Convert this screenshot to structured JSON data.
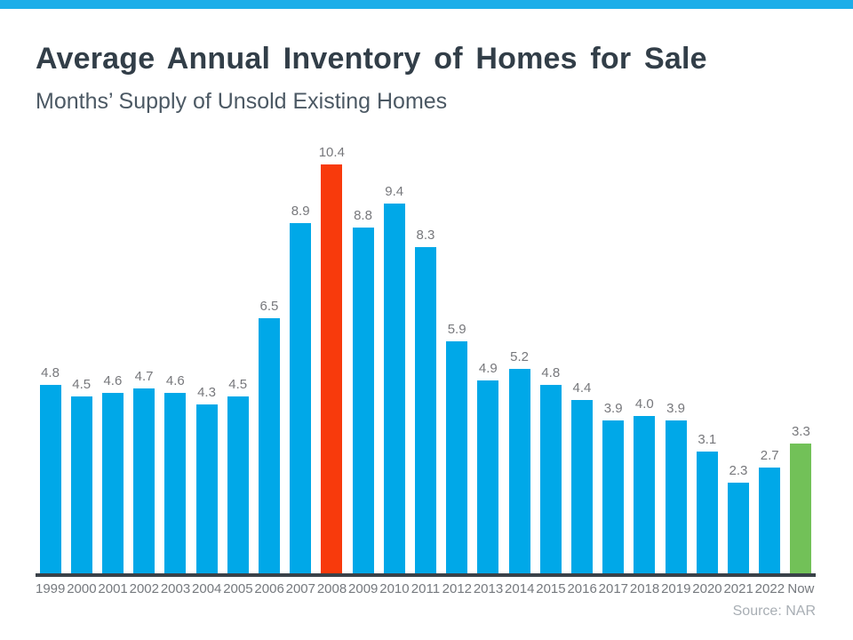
{
  "page": {
    "title": "Average Annual Inventory of Homes for Sale",
    "subtitle": "Months’ Supply of Unsold Existing Homes",
    "source": "Source: NAR"
  },
  "colors": {
    "accent_bar": "#1caee9",
    "bar_default": "#00a8e8",
    "bar_highlight_2008": "#f83a0c",
    "bar_highlight_now": "#72c158",
    "title_text": "#323e48",
    "subtitle_text": "#4c5964",
    "value_label_text": "#77787c",
    "axis_line": "#3a4249",
    "axis_label_text": "#75797e",
    "source_text": "#a8aeb4"
  },
  "chart_data": {
    "type": "bar",
    "title": "Average Annual Inventory of Homes for Sale",
    "subtitle": "Months’ Supply of Unsold Existing Homes",
    "categories": [
      "1999",
      "2000",
      "2001",
      "2002",
      "2003",
      "2004",
      "2005",
      "2006",
      "2007",
      "2008",
      "2009",
      "2010",
      "2011",
      "2012",
      "2013",
      "2014",
      "2015",
      "2016",
      "2017",
      "2018",
      "2019",
      "2020",
      "2021",
      "2022",
      "Now"
    ],
    "values": [
      4.8,
      4.5,
      4.6,
      4.7,
      4.6,
      4.3,
      4.5,
      6.5,
      8.9,
      10.4,
      8.8,
      9.4,
      8.3,
      5.9,
      4.9,
      5.2,
      4.8,
      4.4,
      3.9,
      4.0,
      3.9,
      3.1,
      2.3,
      2.7,
      3.3
    ],
    "value_labels": [
      "4.8",
      "4.5",
      "4.6",
      "4.7",
      "4.6",
      "4.3",
      "4.5",
      "6.5",
      "8.9",
      "10.4",
      "8.8",
      "9.4",
      "8.3",
      "5.9",
      "4.9",
      "5.2",
      "4.8",
      "4.4",
      "3.9",
      "4.0",
      "3.9",
      "3.1",
      "2.3",
      "2.7",
      "3.3"
    ],
    "bar_color_default": "#00a8e8",
    "highlighted_bars": [
      {
        "category": "2008",
        "color": "#f83a0c"
      },
      {
        "category": "Now",
        "color": "#72c158"
      }
    ],
    "xlabel": "",
    "ylabel": "",
    "ylim": [
      0,
      10.4
    ],
    "grid": false,
    "legend": false,
    "value_labels_shown": true,
    "source": "Source: NAR"
  }
}
